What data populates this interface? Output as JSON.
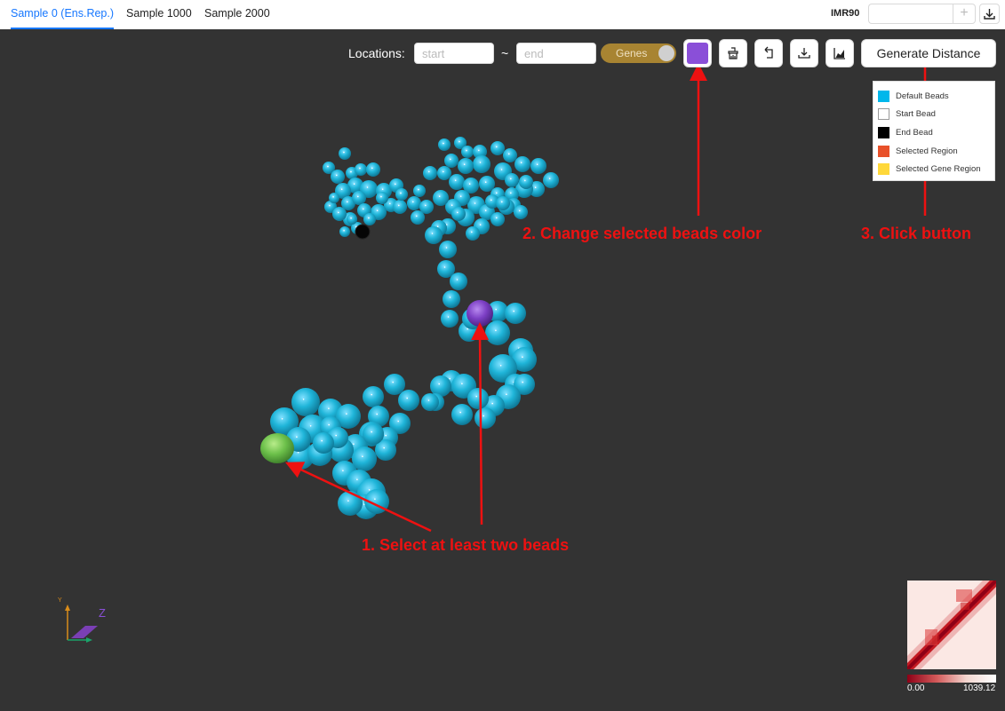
{
  "tabs": [
    {
      "label": "Sample 0 (Ens.Rep.)",
      "active": true
    },
    {
      "label": "Sample 1000",
      "active": false
    },
    {
      "label": "Sample 2000",
      "active": false
    }
  ],
  "cell_line": "IMR90",
  "controls": {
    "locations_label": "Locations:",
    "start_placeholder": "start",
    "tilde": "~",
    "end_placeholder": "end",
    "genes_label": "Genes",
    "selected_color": "#8a4fd8",
    "generate_label": "Generate Distance"
  },
  "legend": [
    {
      "label": "Default Beads",
      "color": "#00b7eb"
    },
    {
      "label": "Start Bead",
      "color": "#ffffff"
    },
    {
      "label": "End Bead",
      "color": "#000000"
    },
    {
      "label": "Selected Region",
      "color": "#e8512a"
    },
    {
      "label": "Selected Gene Region",
      "color": "#ffd83a"
    }
  ],
  "annotations": {
    "step1": "1. Select at least two beads",
    "step2": "2. Change selected beads color",
    "step3": "3. Click button"
  },
  "axes": {
    "y": "Y",
    "z": "Z"
  },
  "heatmap": {
    "min_label": "0.00",
    "max_label": "1039.12"
  },
  "colors": {
    "bead": "#1fb5d9",
    "selected_bead": "#7c3fc4",
    "green_bead": "#6cc04a",
    "annotation": "#ee1111",
    "background": "#333333"
  }
}
